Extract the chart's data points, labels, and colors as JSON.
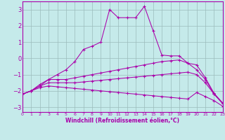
{
  "xlabel": "Windchill (Refroidissement éolien,°C)",
  "xlim": [
    0,
    23
  ],
  "ylim": [
    -3.3,
    3.5
  ],
  "yticks": [
    -3,
    -2,
    -1,
    0,
    1,
    2,
    3
  ],
  "xticks": [
    0,
    1,
    2,
    3,
    4,
    5,
    6,
    7,
    8,
    9,
    10,
    11,
    12,
    13,
    14,
    15,
    16,
    17,
    18,
    19,
    20,
    21,
    22,
    23
  ],
  "bg_color": "#c5eaea",
  "line_color": "#aa00aa",
  "grid_color": "#9bbcbc",
  "lines": [
    {
      "x": [
        0,
        1,
        2,
        3,
        4,
        5,
        6,
        7,
        8,
        9,
        10,
        11,
        12,
        13,
        14,
        15,
        16,
        17,
        18,
        19,
        20,
        21,
        22,
        23
      ],
      "y": [
        -2.2,
        -2.0,
        -1.7,
        -1.3,
        -1.0,
        -0.7,
        -0.2,
        0.55,
        0.75,
        1.0,
        3.0,
        2.5,
        2.5,
        2.5,
        3.2,
        1.7,
        0.2,
        0.15,
        0.15,
        -0.3,
        -0.4,
        -1.2,
        -2.15,
        -2.75
      ]
    },
    {
      "x": [
        0,
        1,
        2,
        3,
        4,
        5,
        6,
        7,
        8,
        9,
        10,
        11,
        12,
        13,
        14,
        15,
        16,
        17,
        18,
        19,
        20,
        21,
        22,
        23
      ],
      "y": [
        -2.2,
        -2.0,
        -1.6,
        -1.3,
        -1.3,
        -1.3,
        -1.2,
        -1.1,
        -1.0,
        -0.9,
        -0.8,
        -0.7,
        -0.6,
        -0.5,
        -0.4,
        -0.3,
        -0.2,
        -0.15,
        -0.1,
        -0.3,
        -0.7,
        -1.3,
        -2.2,
        -2.75
      ]
    },
    {
      "x": [
        0,
        1,
        2,
        3,
        4,
        5,
        6,
        7,
        8,
        9,
        10,
        11,
        12,
        13,
        14,
        15,
        16,
        17,
        18,
        19,
        20,
        21,
        22,
        23
      ],
      "y": [
        -2.2,
        -2.0,
        -1.7,
        -1.5,
        -1.5,
        -1.5,
        -1.5,
        -1.45,
        -1.4,
        -1.35,
        -1.3,
        -1.25,
        -1.2,
        -1.15,
        -1.1,
        -1.05,
        -1.0,
        -0.95,
        -0.9,
        -0.85,
        -1.0,
        -1.5,
        -2.2,
        -2.8
      ]
    },
    {
      "x": [
        0,
        1,
        2,
        3,
        4,
        5,
        6,
        7,
        8,
        9,
        10,
        11,
        12,
        13,
        14,
        15,
        16,
        17,
        18,
        19,
        20,
        21,
        22,
        23
      ],
      "y": [
        -2.2,
        -2.0,
        -1.8,
        -1.7,
        -1.75,
        -1.8,
        -1.85,
        -1.9,
        -1.95,
        -2.0,
        -2.05,
        -2.1,
        -2.15,
        -2.2,
        -2.25,
        -2.3,
        -2.35,
        -2.4,
        -2.45,
        -2.5,
        -2.1,
        -2.35,
        -2.6,
        -2.95
      ]
    }
  ]
}
